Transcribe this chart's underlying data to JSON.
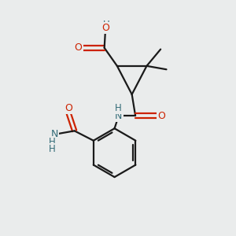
{
  "bg_color": "#eaecec",
  "bond_color": "#1a1a1a",
  "oxygen_color": "#cc2200",
  "nitrogen_color": "#336b77",
  "carbon_color": "#1a1a1a",
  "line_width": 1.6,
  "figsize": [
    3.0,
    3.0
  ],
  "dpi": 100,
  "xlim": [
    0,
    10
  ],
  "ylim": [
    0,
    10
  ]
}
